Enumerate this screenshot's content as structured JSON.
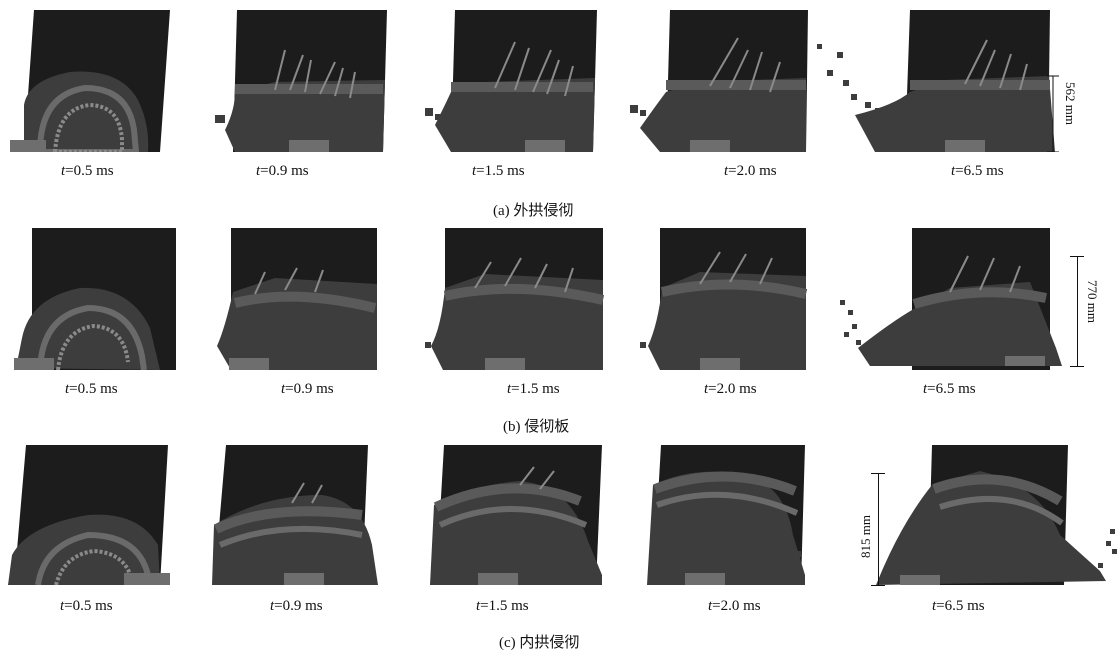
{
  "rows": [
    {
      "caption": "(a)  外拱侵彻",
      "times": [
        "=0.5 ms",
        "=0.9 ms",
        "=1.5 ms",
        "=2.0 ms",
        "=6.5 ms"
      ],
      "dimension": "562 mm"
    },
    {
      "caption": "(b)  侵彻板",
      "times": [
        "=0.5 ms",
        "=0.9 ms",
        "=1.5 ms",
        "=2.0 ms",
        "=6.5 ms"
      ],
      "dimension": "770 mm"
    },
    {
      "caption": "(c)  内拱侵彻",
      "times": [
        "=0.5 ms",
        "=0.9 ms",
        "=1.5 ms",
        "=2.0 ms",
        "=6.5 ms"
      ],
      "dimension": "815 mm"
    }
  ],
  "time_symbol": "t",
  "colors": {
    "dark": "#1c1c1c",
    "body": "#3d3d3d",
    "band": "#5a5a5a",
    "light": "#8a8a8a",
    "plate": "#6e6e6e"
  }
}
